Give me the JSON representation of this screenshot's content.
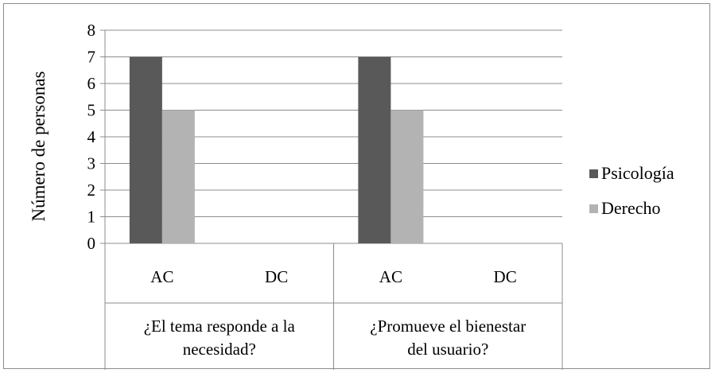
{
  "chart_data": {
    "type": "bar",
    "ylabel": "Número de personas",
    "ylim": [
      0,
      8
    ],
    "yticks": [
      "0",
      "1",
      "2",
      "3",
      "4",
      "5",
      "6",
      "7",
      "8"
    ],
    "groups": [
      {
        "label": "¿El tema responde a la necesidad?",
        "label_lines": [
          "¿El tema responde a la",
          "necesidad?"
        ],
        "categories": [
          "AC",
          "DC"
        ]
      },
      {
        "label": "¿Promueve el bienestar del usuario?",
        "label_lines": [
          "¿Promueve el bienestar",
          "del usuario?"
        ],
        "categories": [
          "AC",
          "DC"
        ]
      }
    ],
    "categories": [
      "AC",
      "DC",
      "AC",
      "DC"
    ],
    "series": [
      {
        "name": "Psicología",
        "color": "#595959",
        "values": [
          7,
          0,
          7,
          0
        ]
      },
      {
        "name": "Derecho",
        "color": "#b3b3b3",
        "values": [
          5,
          0,
          5,
          0
        ]
      }
    ],
    "grid": true,
    "legend_position": "right"
  }
}
